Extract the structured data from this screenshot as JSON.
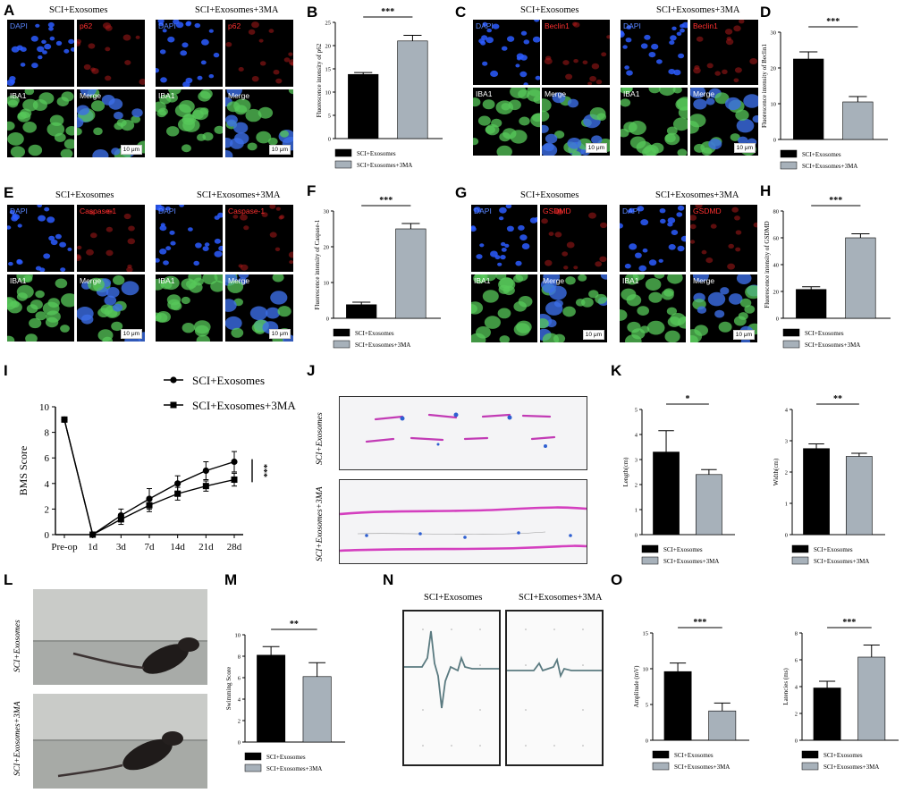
{
  "conditions": {
    "exo": "SCI+Exosomes",
    "exo3ma": "SCI+Exosomes+3MA"
  },
  "colors": {
    "exo": "#000000",
    "exo3ma": "#a7b1ba",
    "dapi": "#2b5cff",
    "red": "#e0201c",
    "iba1": "#57c85a"
  },
  "common_labels": {
    "merge": "Merge",
    "dapi": "DAPI",
    "iba1": "IBA1",
    "scale_bar": "10 μm",
    "sig3": "***",
    "sig2": "**",
    "sig1": "*"
  },
  "panels": {
    "A": {
      "letter": "A",
      "marker": "p62"
    },
    "B": {
      "letter": "B"
    },
    "C": {
      "letter": "C",
      "marker": "Beclin1"
    },
    "D": {
      "letter": "D"
    },
    "E": {
      "letter": "E",
      "marker": "Caspase-1"
    },
    "F": {
      "letter": "F"
    },
    "G": {
      "letter": "G",
      "marker": "GSDMD"
    },
    "H": {
      "letter": "H"
    },
    "I": {
      "letter": "I"
    },
    "J": {
      "letter": "J"
    },
    "K": {
      "letter": "K"
    },
    "L": {
      "letter": "L"
    },
    "M": {
      "letter": "M"
    },
    "N": {
      "letter": "N"
    },
    "O": {
      "letter": "O"
    }
  },
  "chart_data": [
    {
      "id": "B",
      "type": "bar",
      "categories": [
        "SCI+Exosomes",
        "SCI+Exosomes+3MA"
      ],
      "values": [
        13.8,
        21
      ],
      "errors": [
        0.4,
        1.2
      ],
      "ylabel": "Fluorescence intensity of p62",
      "ylim": [
        0,
        25
      ],
      "yticks": [
        0,
        5,
        10,
        15,
        20,
        25
      ],
      "significance": "***"
    },
    {
      "id": "D",
      "type": "bar",
      "categories": [
        "SCI+Exosomes",
        "SCI+Exosomes+3MA"
      ],
      "values": [
        22.5,
        10.5
      ],
      "errors": [
        2,
        1.5
      ],
      "ylabel": "Fluorescence intensity of Beclin1",
      "ylim": [
        0,
        30
      ],
      "yticks": [
        0,
        10,
        20,
        30
      ],
      "significance": "***"
    },
    {
      "id": "F",
      "type": "bar",
      "categories": [
        "SCI+Exosomes",
        "SCI+Exosomes+3MA"
      ],
      "values": [
        3.8,
        25
      ],
      "errors": [
        0.7,
        1.5
      ],
      "ylabel": "Fluorescence intensity of Caspase-1",
      "ylim": [
        0,
        30
      ],
      "yticks": [
        0,
        10,
        20,
        30
      ],
      "significance": "***"
    },
    {
      "id": "H",
      "type": "bar",
      "categories": [
        "SCI+Exosomes",
        "SCI+Exosomes+3MA"
      ],
      "values": [
        21.5,
        60
      ],
      "errors": [
        2,
        3
      ],
      "ylabel": "Fluorescence intensity of GSDMD",
      "ylim": [
        0,
        80
      ],
      "yticks": [
        0,
        20,
        40,
        60,
        80
      ],
      "significance": "***"
    },
    {
      "id": "I",
      "type": "line",
      "x": [
        "Pre-op",
        "1d",
        "3d",
        "7d",
        "14d",
        "21d",
        "28d"
      ],
      "ylabel": "BMS Score",
      "ylim": [
        0,
        10
      ],
      "yticks": [
        0,
        2,
        4,
        6,
        8,
        10
      ],
      "significance": "***",
      "series": [
        {
          "name": "SCI+Exosomes",
          "marker": "circle",
          "values": [
            9,
            0,
            1.5,
            2.8,
            4,
            5,
            5.7
          ],
          "errors": [
            0,
            0.1,
            0.5,
            0.8,
            0.6,
            0.7,
            0.8
          ]
        },
        {
          "name": "SCI+Exosomes+3MA",
          "marker": "square",
          "values": [
            9,
            0,
            1.2,
            2.3,
            3.2,
            3.8,
            4.3
          ],
          "errors": [
            0,
            0.1,
            0.4,
            0.5,
            0.5,
            0.4,
            0.5
          ]
        }
      ]
    },
    {
      "id": "K1",
      "type": "bar",
      "categories": [
        "SCI+Exosomes",
        "SCI+Exosomes+3MA"
      ],
      "values": [
        3.3,
        2.4
      ],
      "errors": [
        0.85,
        0.2
      ],
      "ylabel": "Length(cm)",
      "ylim": [
        0,
        5
      ],
      "yticks": [
        0,
        1,
        2,
        3,
        4,
        5
      ],
      "significance": "*"
    },
    {
      "id": "K2",
      "type": "bar",
      "categories": [
        "SCI+Exosomes",
        "SCI+Exosomes+3MA"
      ],
      "values": [
        2.75,
        2.5
      ],
      "errors": [
        0.15,
        0.1
      ],
      "ylabel": "Width(cm)",
      "ylim": [
        0,
        4
      ],
      "yticks": [
        0,
        1,
        2,
        3,
        4
      ],
      "significance": "**"
    },
    {
      "id": "M",
      "type": "bar",
      "categories": [
        "SCI+Exosomes",
        "SCI+Exosomes+3MA"
      ],
      "values": [
        8.1,
        6.1
      ],
      "errors": [
        0.8,
        1.3
      ],
      "ylabel": "Swimming Score",
      "ylim": [
        0,
        10
      ],
      "yticks": [
        0,
        2,
        4,
        6,
        8,
        10
      ],
      "significance": "**"
    },
    {
      "id": "O1",
      "type": "bar",
      "categories": [
        "SCI+Exosomes",
        "SCI+Exosomes+3MA"
      ],
      "values": [
        9.6,
        4.1
      ],
      "errors": [
        1.2,
        1.1
      ],
      "ylabel": "Amplitude (mV)",
      "ylim": [
        0,
        15
      ],
      "yticks": [
        0,
        5,
        10,
        15
      ],
      "significance": "***"
    },
    {
      "id": "O2",
      "type": "bar",
      "categories": [
        "SCI+Exosomes",
        "SCI+Exosomes+3MA"
      ],
      "values": [
        3.9,
        6.2
      ],
      "errors": [
        0.5,
        0.9
      ],
      "ylabel": "Latencies (ms)",
      "ylim": [
        0,
        8
      ],
      "yticks": [
        0,
        2,
        4,
        6,
        8
      ],
      "significance": "***"
    }
  ]
}
